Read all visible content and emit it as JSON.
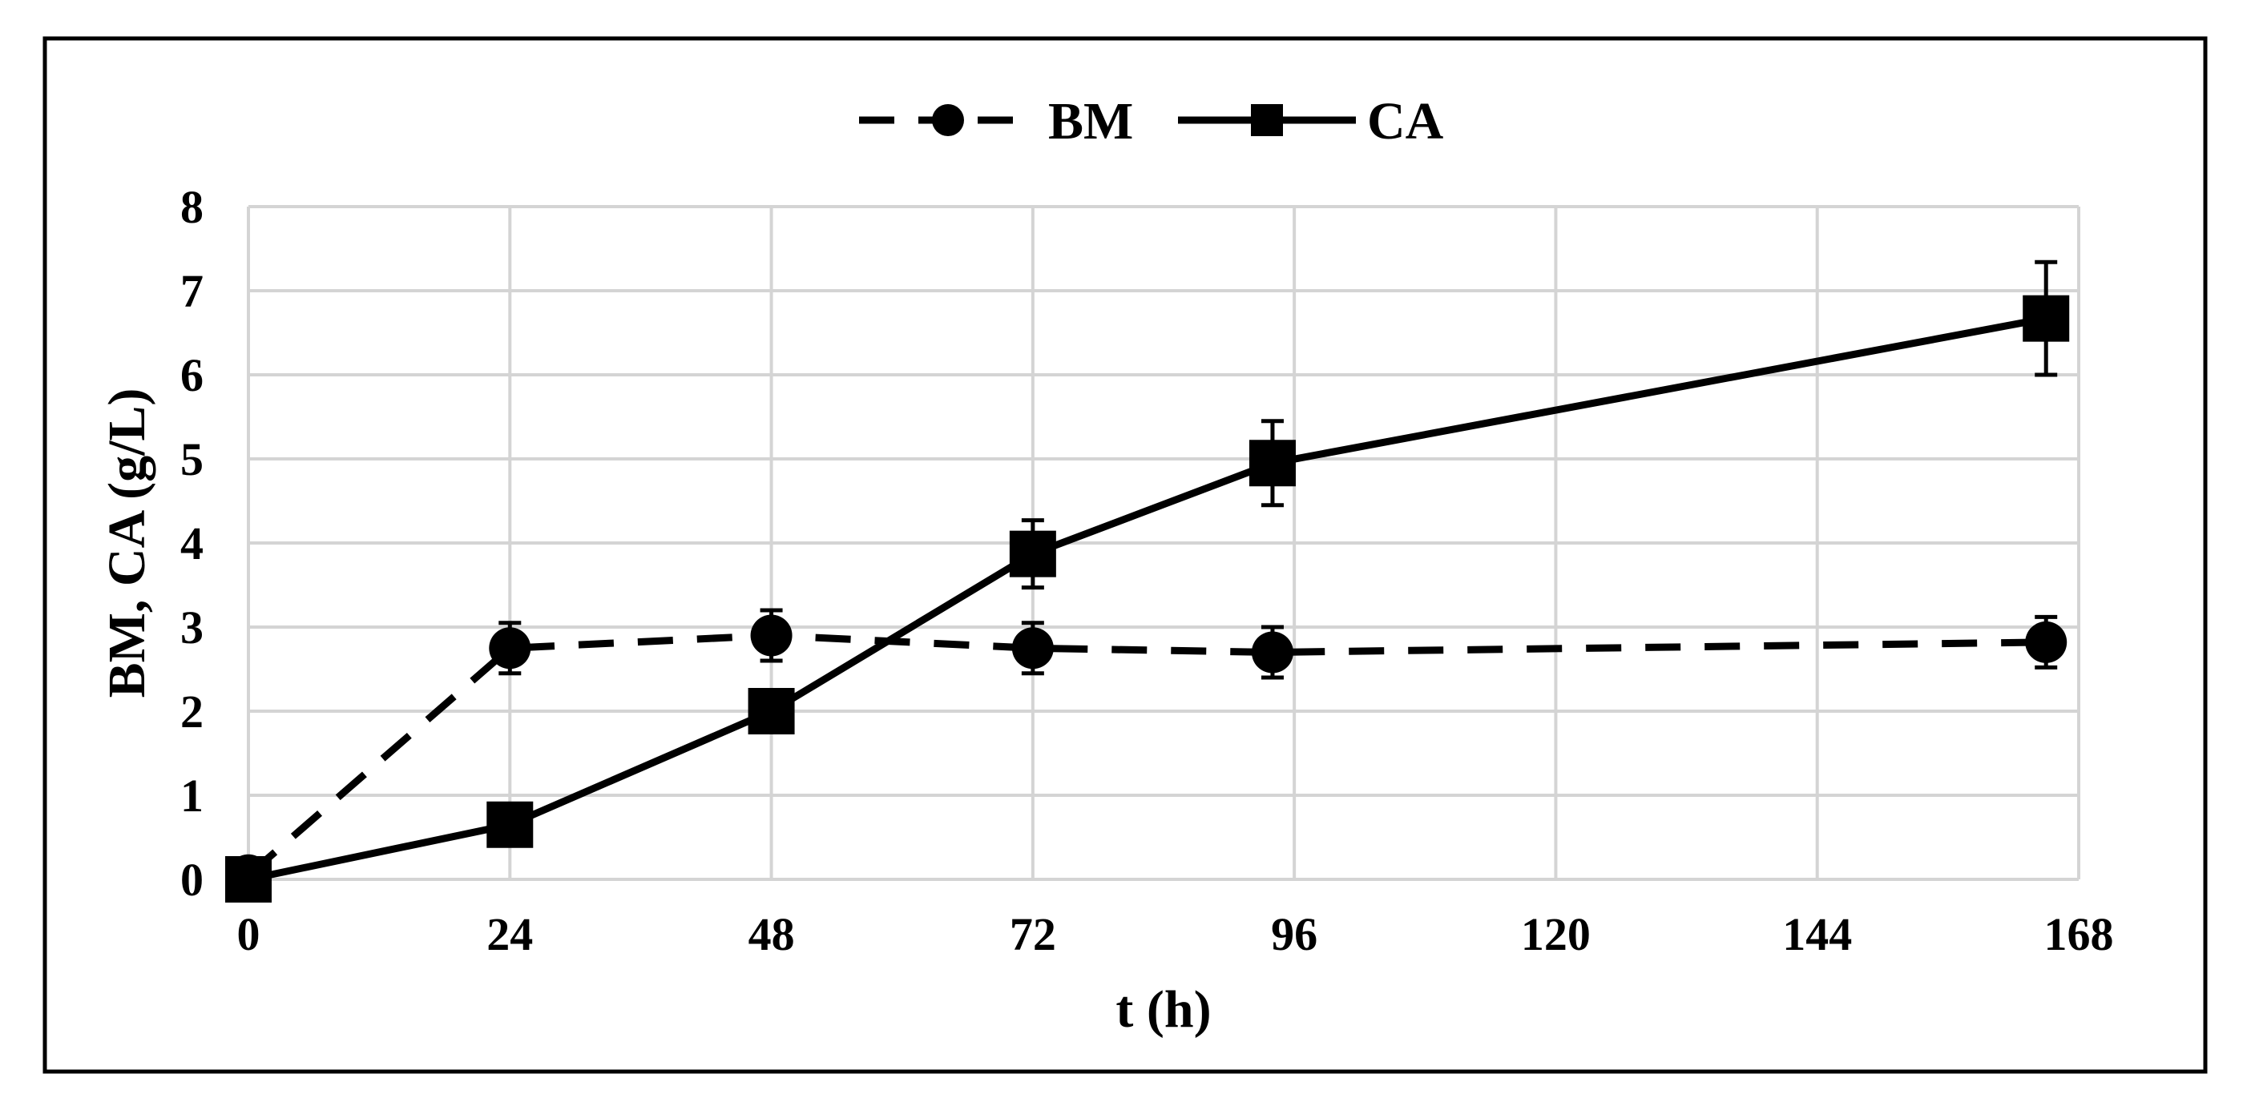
{
  "chart_data": {
    "type": "line",
    "xlabel": "t (h)",
    "ylabel": "BM, CA (g/L)",
    "xlim": [
      0,
      168
    ],
    "ylim": [
      0,
      8
    ],
    "xticks": [
      0,
      24,
      48,
      72,
      96,
      120,
      144,
      168
    ],
    "yticks": [
      0,
      1,
      2,
      3,
      4,
      5,
      6,
      7,
      8
    ],
    "grid": true,
    "legend_position": "top-center",
    "series": [
      {
        "name": "BM",
        "line_style": "dashed",
        "marker": "circle",
        "color": "#000000",
        "x": [
          0,
          24,
          48,
          72,
          94,
          165
        ],
        "y": [
          0.05,
          2.75,
          2.9,
          2.75,
          2.7,
          2.82
        ],
        "error": [
          0,
          0.3,
          0.3,
          0.3,
          0.3,
          0.3
        ]
      },
      {
        "name": "CA",
        "line_style": "solid",
        "marker": "square",
        "color": "#000000",
        "x": [
          0,
          24,
          48,
          72,
          94,
          165
        ],
        "y": [
          0.0,
          0.65,
          2.0,
          3.87,
          4.95,
          6.67
        ],
        "error": [
          0,
          0,
          0,
          0.4,
          0.5,
          0.67
        ]
      }
    ]
  }
}
